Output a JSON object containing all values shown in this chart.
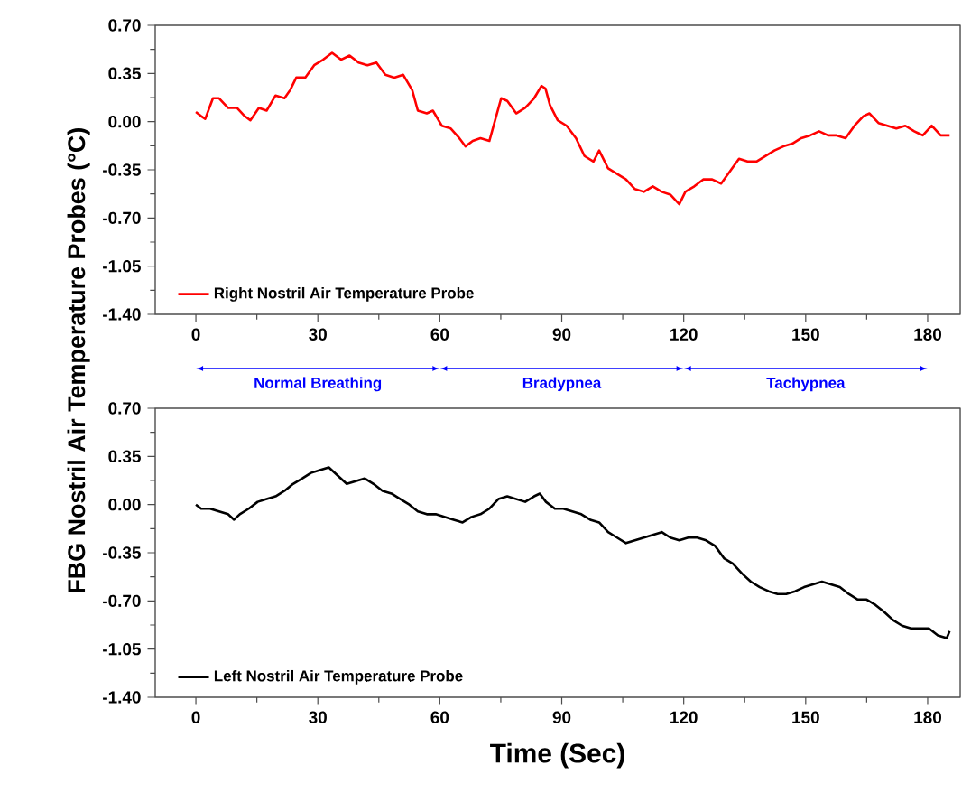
{
  "chart_data": [
    {
      "type": "line",
      "ylabel": "FBG Nostril Air Temperature Probes (°C)",
      "xlim": [
        -10,
        188
      ],
      "ylim": [
        -1.4,
        0.7
      ],
      "xticks": [
        0,
        30,
        60,
        90,
        120,
        150,
        180
      ],
      "yticks": [
        {
          "value": 0.7,
          "label": "0.70"
        },
        {
          "value": 0.35,
          "label": "0.35"
        },
        {
          "value": 0,
          "label": "0.00"
        },
        {
          "value": -0.35,
          "label": "-0.35"
        },
        {
          "value": -0.7,
          "label": "-0.70"
        },
        {
          "value": -1.05,
          "label": "-1.05"
        },
        {
          "value": -1.4,
          "label": "-1.40"
        }
      ],
      "legend": "bottom left",
      "marker": "none",
      "line_style": "solid",
      "grid": false,
      "series": [
        {
          "name": "Right Nostril Air Temperature Probe",
          "color": "#ff0000",
          "x": [
            0,
            1.3,
            2.3,
            4.2,
            5.7,
            7.9,
            10.1,
            12,
            13.4,
            15.5,
            17.4,
            19.6,
            21.8,
            23.2,
            24.7,
            26.9,
            29.1,
            31.3,
            33.5,
            35.7,
            37.8,
            40,
            42.2,
            44.4,
            46.6,
            48.8,
            51,
            53.2,
            54.6,
            56.8,
            58.3,
            60.5,
            62.7,
            64.8,
            66.3,
            68.1,
            70,
            72.2,
            73.6,
            75.1,
            76.6,
            78.8,
            81,
            83.2,
            85,
            86,
            87.1,
            89,
            91.2,
            93.5,
            95.6,
            97.8,
            99.2,
            101.4,
            103.6,
            105.8,
            108,
            110.2,
            112.4,
            114.6,
            116.7,
            118.9,
            120.4,
            122.6,
            124.8,
            127,
            129.2,
            131.4,
            133.6,
            135.7,
            137.9,
            140.1,
            142.3,
            144.5,
            146.7,
            148.9,
            151.1,
            153.3,
            155.5,
            157.6,
            159.8,
            162,
            164.2,
            165.7,
            167.9,
            170.1,
            172.3,
            174.5,
            176.7,
            178.8,
            181,
            183.2,
            185.4
          ],
          "values": [
            0.07,
            0.04,
            0.02,
            0.17,
            0.17,
            0.1,
            0.1,
            0.04,
            0.01,
            0.1,
            0.08,
            0.19,
            0.17,
            0.23,
            0.32,
            0.32,
            0.41,
            0.45,
            0.5,
            0.45,
            0.48,
            0.43,
            0.41,
            0.43,
            0.34,
            0.32,
            0.34,
            0.23,
            0.08,
            0.06,
            0.08,
            -0.03,
            -0.05,
            -0.12,
            -0.18,
            -0.14,
            -0.12,
            -0.14,
            0.01,
            0.17,
            0.15,
            0.06,
            0.1,
            0.17,
            0.26,
            0.24,
            0.12,
            0.01,
            -0.03,
            -0.12,
            -0.25,
            -0.29,
            -0.21,
            -0.34,
            -0.38,
            -0.42,
            -0.49,
            -0.51,
            -0.47,
            -0.51,
            -0.53,
            -0.6,
            -0.51,
            -0.47,
            -0.42,
            -0.42,
            -0.45,
            -0.36,
            -0.27,
            -0.29,
            -0.29,
            -0.25,
            -0.21,
            -0.18,
            -0.16,
            -0.12,
            -0.1,
            -0.07,
            -0.1,
            -0.1,
            -0.12,
            -0.03,
            0.04,
            0.06,
            -0.01,
            -0.03,
            -0.05,
            -0.03,
            -0.07,
            -0.1,
            -0.03,
            -0.1,
            -0.1
          ]
        }
      ]
    },
    {
      "type": "line",
      "xlabel": "Time (Sec)",
      "xlim": [
        -10,
        188
      ],
      "ylim": [
        -1.4,
        0.7
      ],
      "xticks": [
        0,
        30,
        60,
        90,
        120,
        150,
        180
      ],
      "yticks": [
        {
          "value": 0.7,
          "label": "0.70"
        },
        {
          "value": 0.35,
          "label": "0.35"
        },
        {
          "value": 0,
          "label": "0.00"
        },
        {
          "value": -0.35,
          "label": "-0.35"
        },
        {
          "value": -0.7,
          "label": "-0.70"
        },
        {
          "value": -1.05,
          "label": "-1.05"
        },
        {
          "value": -1.4,
          "label": "-1.40"
        }
      ],
      "legend": "bottom left",
      "marker": "none",
      "line_style": "solid",
      "grid": false,
      "annotations": [
        "Normal Breathing",
        "Bradypnea",
        "Tachypnea"
      ],
      "series": [
        {
          "name": "Left Nostril Air Temperature Probe",
          "color": "#000000",
          "x": [
            0,
            1.3,
            3.5,
            5.7,
            7.9,
            9.4,
            10.8,
            13,
            15.2,
            17.4,
            19.6,
            21.8,
            23.9,
            26.2,
            28.3,
            30.5,
            32.7,
            34.9,
            37.1,
            39.3,
            41.5,
            43.7,
            45.9,
            48.1,
            50.3,
            52.5,
            54.6,
            56.8,
            59,
            61.2,
            63.4,
            65.6,
            67.8,
            70,
            72.2,
            74.4,
            76.6,
            78.8,
            81,
            83.2,
            84.6,
            86.1,
            88.3,
            90.4,
            92.6,
            94.8,
            97,
            99.2,
            101.4,
            103.6,
            105.8,
            108,
            110.2,
            112.4,
            114.6,
            116.7,
            118.9,
            121.1,
            123.3,
            125.5,
            127.7,
            129.9,
            132.1,
            134.3,
            136.5,
            138.7,
            140.9,
            143.1,
            145.2,
            147.4,
            149.6,
            151.8,
            154,
            156.2,
            158.4,
            160.6,
            162.8,
            165,
            167.2,
            169.3,
            171.5,
            173.7,
            175.9,
            178.1,
            180.3,
            182.5,
            184.7,
            185.4
          ],
          "values": [
            0,
            -0.03,
            -0.03,
            -0.05,
            -0.07,
            -0.11,
            -0.07,
            -0.03,
            0.02,
            0.04,
            0.06,
            0.1,
            0.15,
            0.19,
            0.23,
            0.25,
            0.27,
            0.21,
            0.15,
            0.17,
            0.19,
            0.15,
            0.1,
            0.08,
            0.04,
            0,
            -0.05,
            -0.07,
            -0.07,
            -0.09,
            -0.11,
            -0.13,
            -0.09,
            -0.07,
            -0.03,
            0.04,
            0.06,
            0.04,
            0.02,
            0.06,
            0.08,
            0.02,
            -0.03,
            -0.03,
            -0.05,
            -0.07,
            -0.11,
            -0.13,
            -0.2,
            -0.24,
            -0.28,
            -0.26,
            -0.24,
            -0.22,
            -0.2,
            -0.24,
            -0.26,
            -0.24,
            -0.24,
            -0.26,
            -0.3,
            -0.39,
            -0.43,
            -0.5,
            -0.56,
            -0.6,
            -0.63,
            -0.65,
            -0.65,
            -0.63,
            -0.6,
            -0.58,
            -0.56,
            -0.58,
            -0.6,
            -0.65,
            -0.69,
            -0.69,
            -0.73,
            -0.78,
            -0.84,
            -0.88,
            -0.9,
            -0.9,
            -0.9,
            -0.95,
            -0.97,
            -0.92
          ]
        }
      ]
    }
  ]
}
